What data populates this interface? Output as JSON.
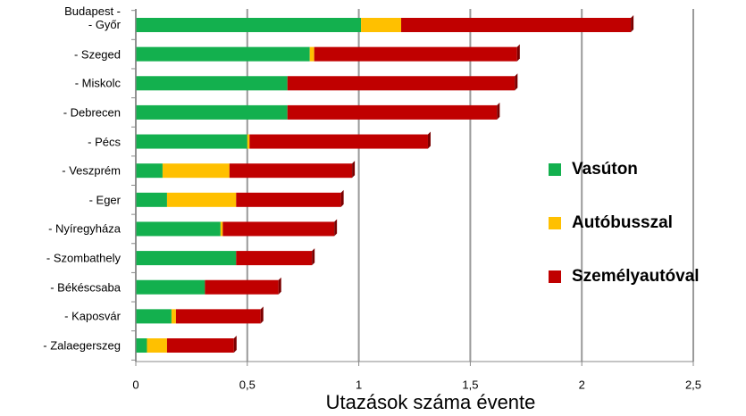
{
  "chart_data": {
    "type": "stacked-barh",
    "x_label": "Utazások száma évente",
    "categories": [
      "Budapest -\n- Győr",
      "- Szeged",
      "- Miskolc",
      "- Debrecen",
      "- Pécs",
      "- Veszprém",
      "- Eger",
      "- Nyíregyháza",
      "- Szombathely",
      "- Békéscsaba",
      "- Kaposvár",
      "- Zalaegerszeg"
    ],
    "series": [
      {
        "name": "Vasúton",
        "color": "#13b04e",
        "values": [
          1.01,
          0.78,
          0.68,
          0.68,
          0.5,
          0.12,
          0.14,
          0.38,
          0.45,
          0.31,
          0.16,
          0.05
        ]
      },
      {
        "name": "Autóbusszal",
        "color": "#ffc000",
        "values": [
          0.18,
          0.02,
          0,
          0,
          0.01,
          0.3,
          0.31,
          0.01,
          0,
          0,
          0.02,
          0.09
        ]
      },
      {
        "name": "Személyautóval",
        "color": "#c00000",
        "values": [
          1.03,
          0.91,
          1.02,
          0.94,
          0.8,
          0.55,
          0.47,
          0.5,
          0.34,
          0.33,
          0.38,
          0.3
        ]
      }
    ],
    "xlim": [
      0,
      2.5
    ],
    "xticks": [
      0,
      {
        "value": 0.5,
        "label": "0,5"
      },
      1,
      {
        "value": 1.5,
        "label": "1,5"
      },
      2,
      {
        "value": 2.5,
        "label": "2,5"
      }
    ],
    "grid": true,
    "legend": "right"
  }
}
